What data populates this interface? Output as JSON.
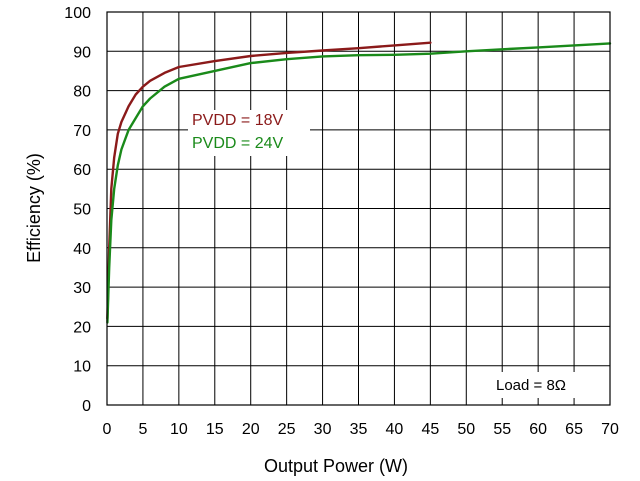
{
  "chart_data": {
    "type": "line",
    "xlabel": "Output Power (W)",
    "ylabel": "Efficiency (%)",
    "xlim": [
      0,
      70
    ],
    "ylim": [
      0,
      100
    ],
    "x_ticks": [
      0,
      5,
      10,
      15,
      20,
      25,
      30,
      35,
      40,
      45,
      50,
      55,
      60,
      65,
      70
    ],
    "y_ticks": [
      0,
      10,
      20,
      30,
      40,
      50,
      60,
      70,
      80,
      90,
      100
    ],
    "grid": true,
    "legend_placement": "upper-left inside plot",
    "annotation": "Load = 8Ω",
    "series": [
      {
        "name": "PVDD = 18V",
        "color": "#8b1a1a",
        "x": [
          0.05,
          0.3,
          0.6,
          1,
          1.5,
          2,
          3,
          4,
          5,
          6,
          8,
          10,
          15,
          20,
          25,
          30,
          35,
          40,
          45
        ],
        "y": [
          22,
          40,
          55,
          63,
          69,
          72,
          76,
          79,
          81,
          82.5,
          84.5,
          86,
          87.5,
          88.8,
          89.6,
          90.2,
          90.8,
          91.5,
          92.2
        ]
      },
      {
        "name": "PVDD = 24V",
        "color": "#1a8a1a",
        "x": [
          0.05,
          0.3,
          0.6,
          1,
          1.5,
          2,
          3,
          4,
          5,
          6,
          8,
          10,
          15,
          20,
          25,
          30,
          35,
          40,
          45,
          50,
          55,
          60,
          65,
          70
        ],
        "y": [
          21,
          35,
          47,
          55,
          61,
          65,
          70,
          73,
          76,
          78,
          81,
          83,
          85,
          87,
          88,
          88.7,
          89,
          89.1,
          89.4,
          90,
          90.5,
          91,
          91.5,
          92
        ]
      }
    ]
  }
}
